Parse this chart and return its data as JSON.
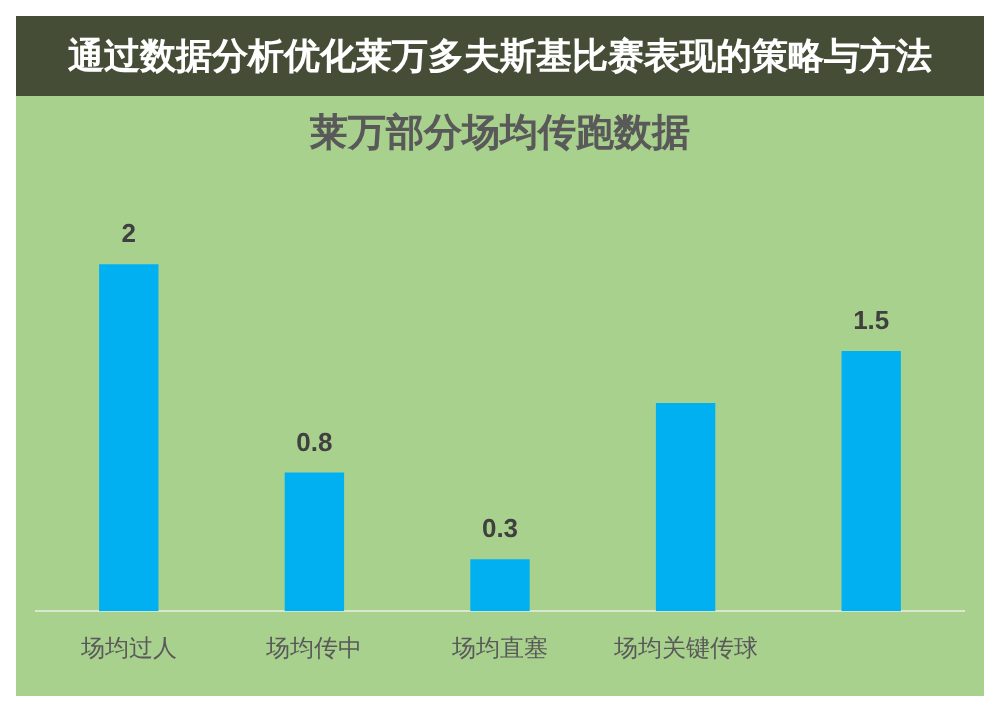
{
  "chart_data": {
    "type": "bar",
    "title": "莱万部分场均传跑数据",
    "annotations": [
      "通过数据分析优化莱万多夫斯基比赛表现的策略与方法"
    ],
    "categories": [
      "场均过人",
      "场均传中",
      "场均直塞",
      "场均关键传球",
      null
    ],
    "values": [
      2,
      0.8,
      0.3,
      1.2,
      1.5
    ],
    "value_labels": [
      "2",
      "0.8",
      "0.3",
      null,
      "1.5"
    ],
    "color": "#00b0f0",
    "grid": false,
    "legend": false
  }
}
